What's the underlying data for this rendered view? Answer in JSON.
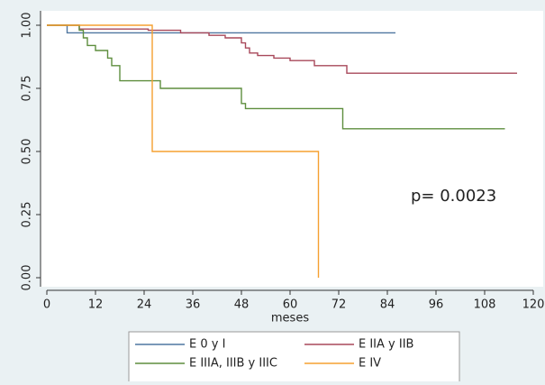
{
  "chart_data": {
    "type": "step",
    "xlabel": "meses",
    "annotation": "p= 0.0023",
    "xlim": [
      0,
      120
    ],
    "xticks": [
      0,
      12,
      24,
      36,
      48,
      60,
      72,
      84,
      96,
      108,
      120
    ],
    "ylim": [
      0,
      1
    ],
    "yticks": [
      {
        "value": 0,
        "label": "0.00"
      },
      {
        "value": 0.25,
        "label": "0.25"
      },
      {
        "value": 0.5,
        "label": "0.50"
      },
      {
        "value": 0.75,
        "label": "0.75"
      },
      {
        "value": 1,
        "label": "1.00"
      }
    ],
    "series": [
      {
        "name": "E 0 y I",
        "color": "#4f76a0",
        "x": [
          0,
          5,
          86
        ],
        "values": [
          1,
          0.97,
          0.97
        ]
      },
      {
        "name": "E IIA y IIB",
        "color": "#a8485a",
        "x": [
          0,
          8,
          25,
          33,
          40,
          44,
          48,
          49,
          50,
          52,
          56,
          60,
          66,
          74,
          116
        ],
        "values": [
          1,
          0.985,
          0.98,
          0.97,
          0.96,
          0.95,
          0.93,
          0.91,
          0.89,
          0.88,
          0.87,
          0.86,
          0.84,
          0.81,
          0.81
        ]
      },
      {
        "name": "E IIIA, IIIB y IIIC",
        "color": "#5e8e3e",
        "x": [
          0,
          8,
          9,
          10,
          12,
          15,
          16,
          18,
          28,
          48,
          49,
          73,
          113
        ],
        "values": [
          1,
          0.98,
          0.95,
          0.92,
          0.9,
          0.87,
          0.84,
          0.78,
          0.75,
          0.69,
          0.67,
          0.59,
          0.59
        ]
      },
      {
        "name": "E IV",
        "color": "#f5a030",
        "x": [
          0,
          26,
          67
        ],
        "values": [
          1,
          0.5,
          0
        ]
      }
    ]
  }
}
